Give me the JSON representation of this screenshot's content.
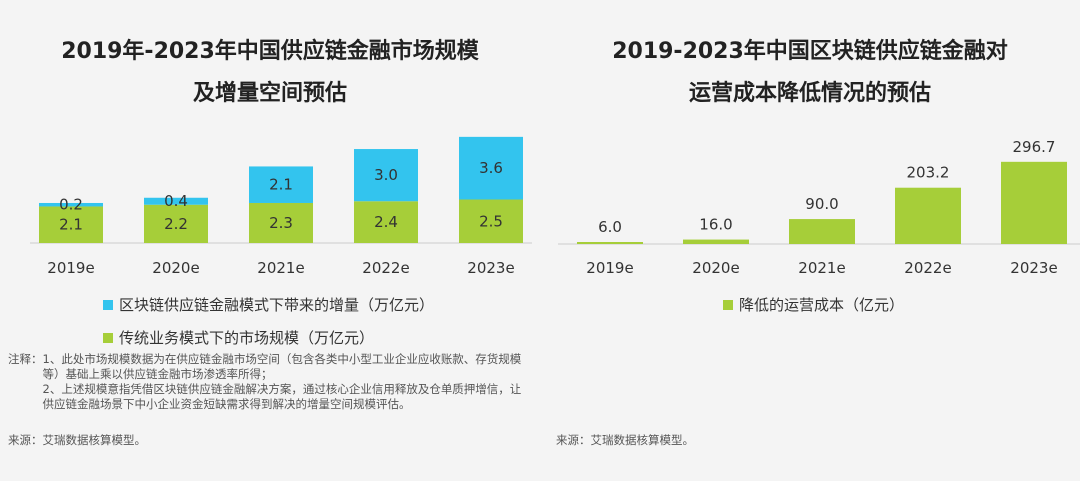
{
  "left": {
    "title_line1": "2019年-2023年中国供应链金融市场规模",
    "title_line2": "及增量空间预估",
    "legend": [
      {
        "label": "区块链供应链金融模式下带来的增量（万亿元）",
        "color": "#33c4ee"
      },
      {
        "label": "传统业务模式下的市场规模（万亿元）",
        "color": "#a6ce39"
      }
    ],
    "notes": {
      "prefix": "注释：",
      "items": [
        "1、此处市场规模数据为在供应链金融市场空间（包含各类中小型工业企业应收账款、存货规模等）基础上乘以供应链金融市场渗透率所得；",
        "2、上述规模意指凭借区块链供应链金融解决方案，通过核心企业信用释放及仓单质押增信，让供应链金融场景下中小企业资金短缺需求得到解决的增量空间规模评估。"
      ]
    },
    "source": "来源：艾瑞数据核算模型。"
  },
  "right": {
    "title_line1": "2019-2023年中国区块链供应链金融对",
    "title_line2": "运营成本降低情况的预估",
    "legend": [
      {
        "label": "降低的运营成本（亿元）",
        "color": "#a6ce39"
      }
    ],
    "source": "来源：艾瑞数据核算模型。"
  },
  "chart_data": [
    {
      "type": "bar",
      "stacked": true,
      "categories": [
        "2019e",
        "2020e",
        "2021e",
        "2022e",
        "2023e"
      ],
      "series": [
        {
          "name": "传统业务模式下的市场规模（万亿元）",
          "values": [
            2.1,
            2.2,
            2.3,
            2.4,
            2.5
          ],
          "color": "#a6ce39"
        },
        {
          "name": "区块链供应链金融模式下带来的增量（万亿元）",
          "values": [
            0.2,
            0.4,
            2.1,
            3.0,
            3.6
          ],
          "color": "#33c4ee"
        }
      ],
      "value_labels": {
        "base": [
          "2.1",
          "2.2",
          "2.3",
          "2.4",
          "2.5"
        ],
        "increment": [
          "0.2",
          "0.4",
          "2.1",
          "3.0",
          "3.6"
        ]
      },
      "title": "2019年-2023年中国供应链金融市场规模及增量空间预估",
      "legend_position": "bottom",
      "grid": false
    },
    {
      "type": "bar",
      "categories": [
        "2019e",
        "2020e",
        "2021e",
        "2022e",
        "2023e"
      ],
      "series": [
        {
          "name": "降低的运营成本（亿元）",
          "values": [
            6.0,
            16.0,
            90.0,
            203.2,
            296.7
          ],
          "color": "#a6ce39"
        }
      ],
      "value_labels": [
        "6.0",
        "16.0",
        "90.0",
        "203.2",
        "296.7"
      ],
      "title": "2019-2023年中国区块链供应链金融对运营成本降低情况的预估",
      "legend_position": "bottom",
      "grid": false
    }
  ]
}
